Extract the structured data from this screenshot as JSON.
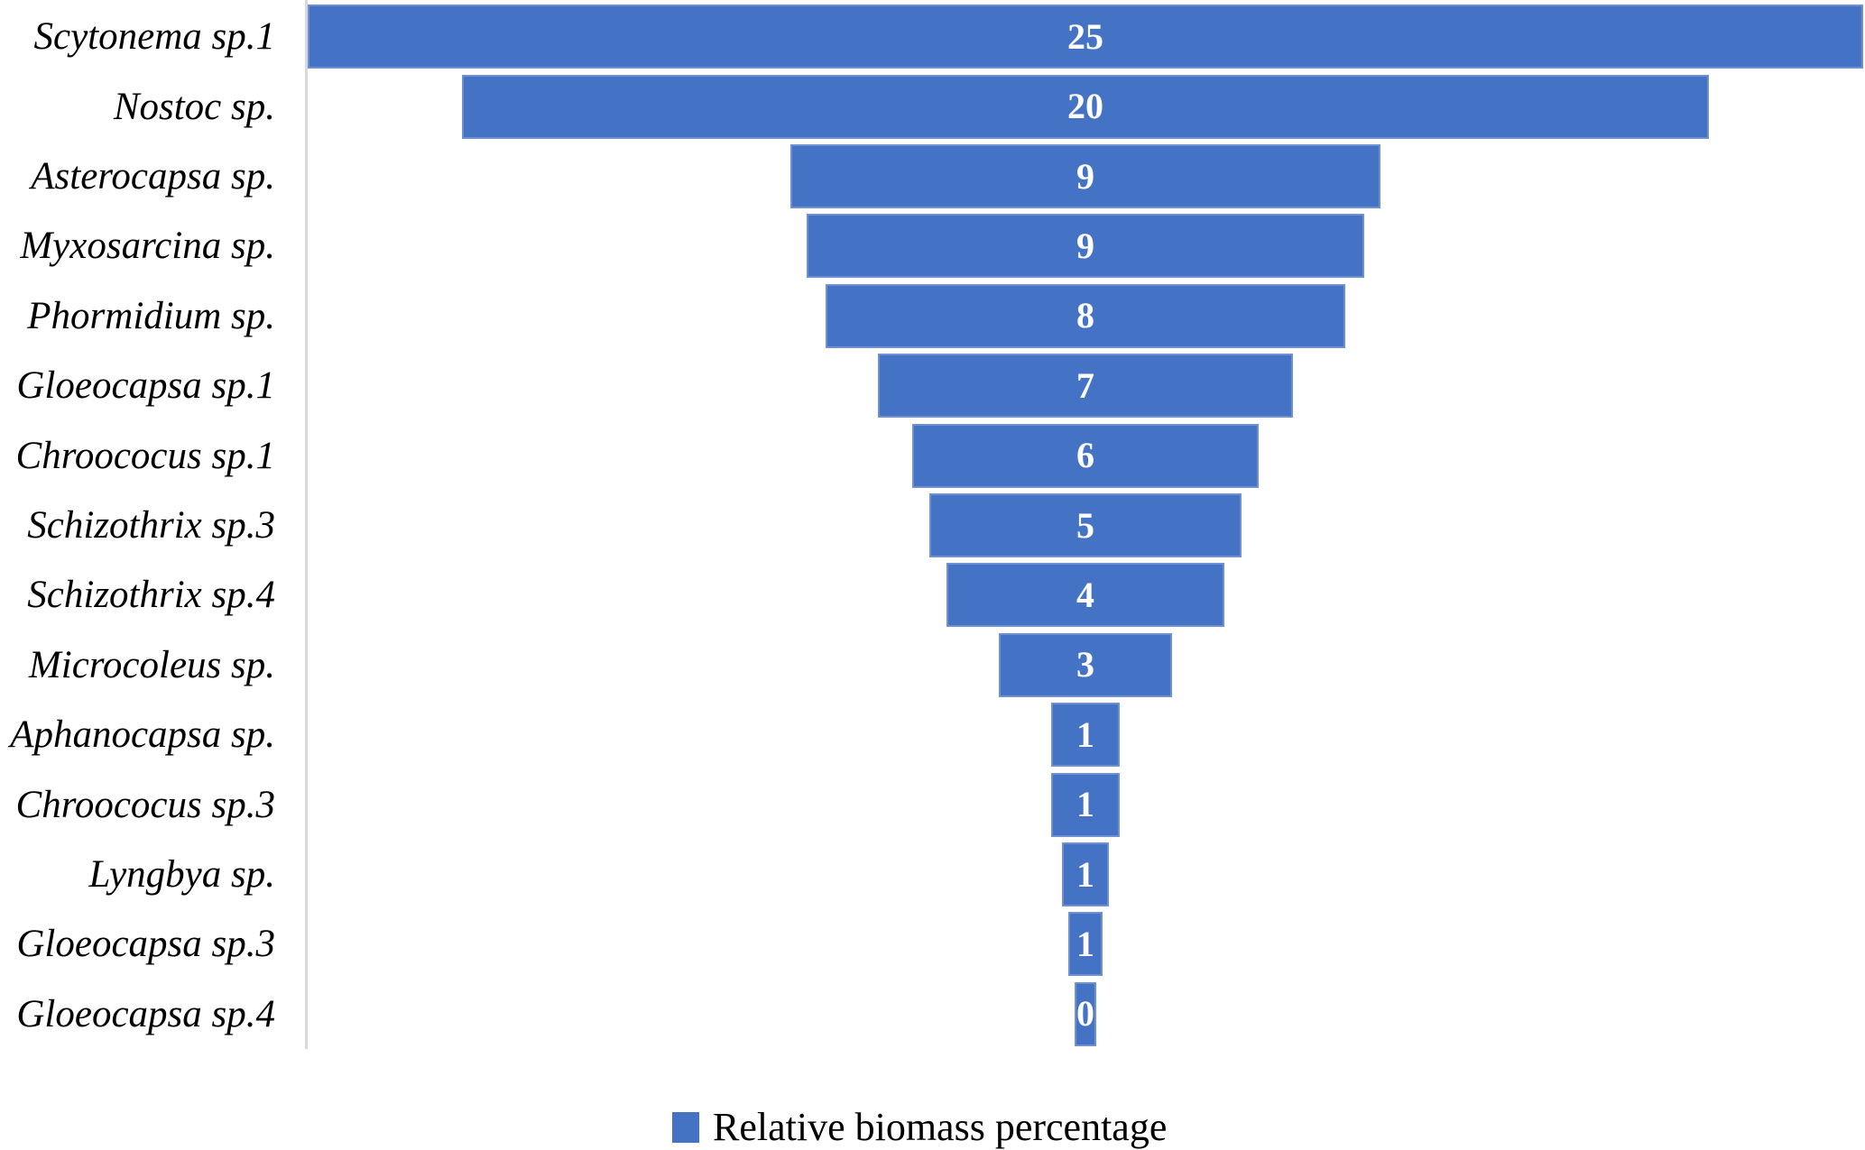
{
  "chart_data": {
    "type": "bar",
    "subtype": "funnel",
    "orientation": "horizontal-centered",
    "title": "",
    "xlabel": "",
    "ylabel": "",
    "grid": false,
    "legend_position": "bottom-center",
    "categories": [
      "Scytonema sp.1",
      "Nostoc sp.",
      "Asterocapsa sp.",
      "Myxosarcina sp.",
      "Phormidium sp.",
      "Gloeocapsa sp.1",
      "Chroococus sp.1",
      "Schizothrix sp.3",
      "Schizothrix sp.4",
      "Microcoleus sp.",
      "Aphanocapsa sp.",
      "Chroococus sp.3",
      "Lyngbya sp.",
      "Gloeocapsa sp.3",
      "Gloeocapsa sp.4"
    ],
    "series": [
      {
        "name": "Relative biomass percentage",
        "values": [
          25,
          20,
          9,
          9,
          8,
          7,
          6,
          5,
          4,
          3,
          1,
          1,
          1,
          1,
          0
        ]
      }
    ],
    "display_values": [
      "25",
      "20",
      "9",
      "9",
      "8",
      "7",
      "6",
      "5",
      "4",
      "3",
      "1",
      "1",
      "1",
      "1",
      "0"
    ],
    "bar_width_pct": [
      100,
      80.2,
      37.9,
      35.8,
      33.4,
      26.7,
      22.3,
      20.1,
      17.9,
      11.1,
      4.4,
      4.4,
      3.0,
      2.2,
      1.4
    ],
    "bar_color": "#4472C4",
    "value_label_color": "#FFFFFF",
    "axis_line_color": "#D9D9D9"
  },
  "legend": {
    "label": "Relative biomass percentage",
    "swatch_color": "#4472C4"
  }
}
